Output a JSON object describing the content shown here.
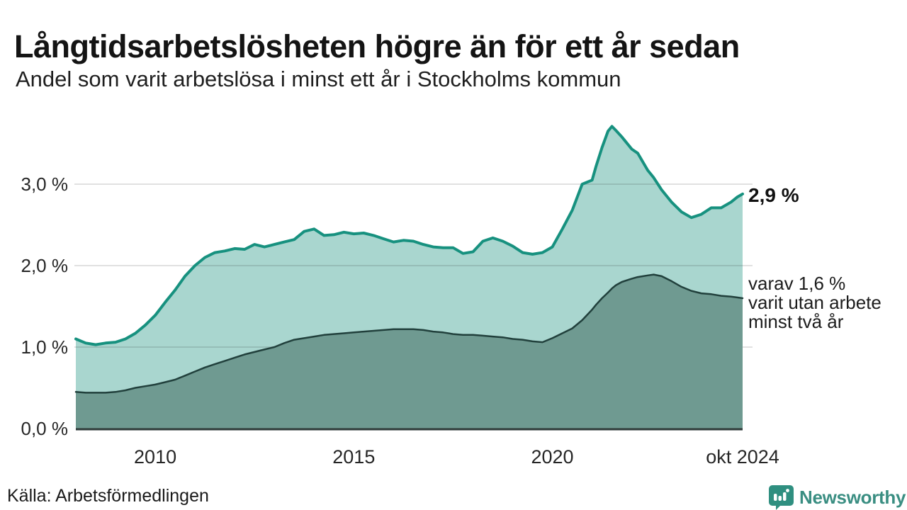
{
  "header": {
    "title": "Långtidsarbetslösheten högre än för ett år sedan",
    "subtitle": "Andel som varit arbetslösa i minst ett år i Stockholms kommun"
  },
  "annotations": {
    "latest_total": "2,9 %",
    "secondary_lines": [
      "varav 1,6 %",
      "varit utan arbete",
      "minst två år"
    ]
  },
  "footer": {
    "source": "Källa: Arbetsförmedlingen",
    "brand_name": "Newsworthy",
    "brand_icon": "newsworthy-speech-bubble-bar-chart-icon"
  },
  "colors": {
    "accent_line": "#17917f",
    "accent_fill": "#a9d6cf",
    "dark_line": "#21403c",
    "dark_fill": "#6f9a91",
    "baseline": "#2f3b39",
    "gridline_ink": "#141414",
    "brand_teal": "#2f8f80",
    "text": "#1a1a1a"
  },
  "chart_data": {
    "type": "area",
    "title": "Långtidsarbetslösheten högre än för ett år sedan",
    "subtitle": "Andel som varit arbetslösa i minst ett år i Stockholms kommun",
    "xlabel": "",
    "ylabel": "",
    "xlim": [
      2008,
      2024.79
    ],
    "ylim": [
      0,
      3.8
    ],
    "grid": "horizontal-major-only",
    "legend": "none (direct labels at line ends)",
    "x_ticks": [
      {
        "t": 2010,
        "label": "2010"
      },
      {
        "t": 2015,
        "label": "2015"
      },
      {
        "t": 2020,
        "label": "2020"
      },
      {
        "t": 2024.79,
        "label": "okt 2024"
      }
    ],
    "y_ticks": [
      {
        "v": 0,
        "label": "0,0 %"
      },
      {
        "v": 1,
        "label": "1,0 %"
      },
      {
        "v": 2,
        "label": "2,0 %"
      },
      {
        "v": 3,
        "label": "3,0 %"
      }
    ],
    "x": [
      2008.0,
      2008.25,
      2008.5,
      2008.75,
      2009.0,
      2009.25,
      2009.5,
      2009.75,
      2010.0,
      2010.25,
      2010.5,
      2010.75,
      2011.0,
      2011.25,
      2011.5,
      2011.75,
      2012.0,
      2012.25,
      2012.5,
      2012.75,
      2013.0,
      2013.25,
      2013.5,
      2013.75,
      2014.0,
      2014.25,
      2014.5,
      2014.75,
      2015.0,
      2015.25,
      2015.5,
      2015.75,
      2016.0,
      2016.25,
      2016.5,
      2016.75,
      2017.0,
      2017.25,
      2017.5,
      2017.75,
      2018.0,
      2018.25,
      2018.5,
      2018.75,
      2019.0,
      2019.25,
      2019.5,
      2019.75,
      2020.0,
      2020.25,
      2020.5,
      2020.75,
      2021.0,
      2021.1,
      2021.25,
      2021.4,
      2021.5,
      2021.6,
      2021.75,
      2022.0,
      2022.15,
      2022.4,
      2022.55,
      2022.75,
      2023.0,
      2023.25,
      2023.5,
      2023.75,
      2024.0,
      2024.25,
      2024.5,
      2024.65,
      2024.79
    ],
    "series": [
      {
        "name": "Andel arbetslösa minst ett år",
        "end_label": "2,9 %",
        "end_value_pct": 2.9,
        "values": [
          1.1,
          1.05,
          1.03,
          1.05,
          1.06,
          1.1,
          1.17,
          1.27,
          1.39,
          1.55,
          1.7,
          1.87,
          2.0,
          2.1,
          2.16,
          2.18,
          2.21,
          2.2,
          2.26,
          2.23,
          2.26,
          2.29,
          2.32,
          2.42,
          2.45,
          2.37,
          2.38,
          2.41,
          2.39,
          2.4,
          2.37,
          2.33,
          2.29,
          2.31,
          2.3,
          2.26,
          2.23,
          2.22,
          2.22,
          2.15,
          2.17,
          2.3,
          2.34,
          2.3,
          2.24,
          2.16,
          2.14,
          2.16,
          2.23,
          2.45,
          2.68,
          3.0,
          3.05,
          3.22,
          3.45,
          3.65,
          3.71,
          3.66,
          3.58,
          3.43,
          3.38,
          3.17,
          3.08,
          2.93,
          2.78,
          2.66,
          2.59,
          2.63,
          2.71,
          2.71,
          2.78,
          2.84,
          2.88
        ]
      },
      {
        "name": "Andel arbetslösa minst två år",
        "end_label": "varav 1,6 % varit utan arbete minst två år",
        "end_value_pct": 1.6,
        "values": [
          0.45,
          0.44,
          0.44,
          0.44,
          0.45,
          0.47,
          0.5,
          0.52,
          0.54,
          0.57,
          0.6,
          0.65,
          0.7,
          0.75,
          0.79,
          0.83,
          0.87,
          0.91,
          0.94,
          0.97,
          1.0,
          1.05,
          1.09,
          1.11,
          1.13,
          1.15,
          1.16,
          1.17,
          1.18,
          1.19,
          1.2,
          1.21,
          1.22,
          1.22,
          1.22,
          1.21,
          1.19,
          1.18,
          1.16,
          1.15,
          1.15,
          1.14,
          1.13,
          1.12,
          1.1,
          1.09,
          1.07,
          1.06,
          1.11,
          1.17,
          1.23,
          1.33,
          1.46,
          1.52,
          1.6,
          1.67,
          1.72,
          1.76,
          1.8,
          1.84,
          1.86,
          1.88,
          1.89,
          1.87,
          1.81,
          1.74,
          1.69,
          1.66,
          1.65,
          1.63,
          1.62,
          1.61,
          1.6
        ]
      }
    ]
  }
}
